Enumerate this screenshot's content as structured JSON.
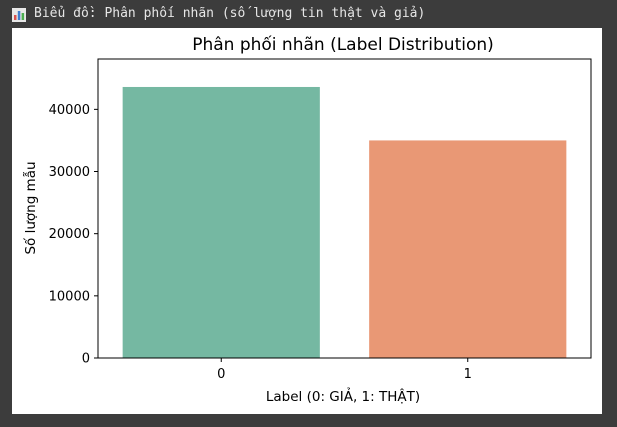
{
  "header": {
    "icon": "bar-chart-icon",
    "title": "Biểu đồ: Phân phối nhãn (số lượng tin thật và giả)"
  },
  "chart_data": {
    "type": "bar",
    "title": "Phân phối nhãn (Label Distribution)",
    "xlabel": "Label (0: GIẢ, 1: THẬT)",
    "ylabel": "Số lượng mẫu",
    "categories": [
      "0",
      "1"
    ],
    "values": [
      43600,
      35000
    ],
    "ylim": [
      0,
      48100
    ],
    "yticks": [
      0,
      10000,
      20000,
      30000,
      40000
    ],
    "colors": [
      "#75b8a2",
      "#e99875"
    ],
    "grid": false,
    "legend": "none"
  }
}
